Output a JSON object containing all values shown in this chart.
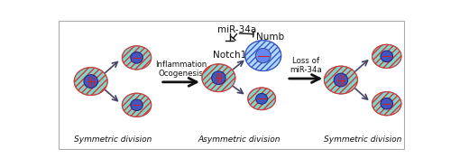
{
  "fig_width": 5.0,
  "fig_height": 1.86,
  "dpi": 100,
  "bg_color": "#ffffff",
  "border_color": "#aaaaaa",
  "cell_teal": "#7dd8cc",
  "cell_edge": "#777777",
  "stripe_red": "#dd3333",
  "stripe_blue": "#3355cc",
  "nucleus_blue": "#4455bb",
  "nucleus_edge": "#222277",
  "nucleus_fill_asym": "#5588ee",
  "arrow_dark": "#444466",
  "big_arrow": "#111111",
  "text_color": "#111111",
  "mir_line_color": "#111111",
  "label_sym1": "Symmetric division",
  "label_asym": "Asymmetric division",
  "label_sym2": "Symmetric division",
  "label_inflammation": "Inflammation\nOcogenesis",
  "label_loss": "Loss of\nmiR-34a",
  "label_mir34a": "miR-34a",
  "label_numb": "Numb",
  "label_notch1": "Notch1",
  "xlim": [
    0,
    500
  ],
  "ylim": [
    0,
    186
  ]
}
